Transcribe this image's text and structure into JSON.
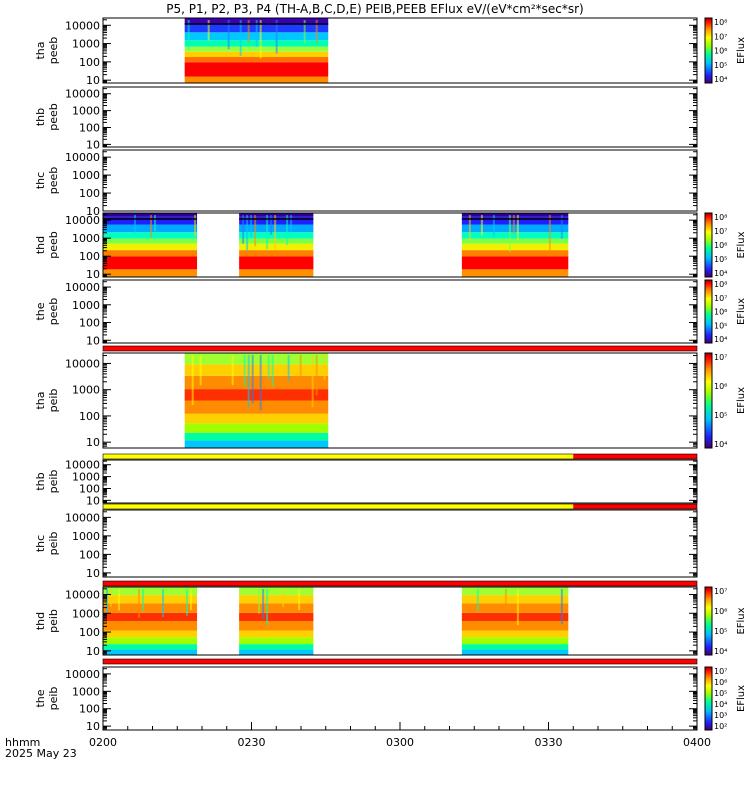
{
  "title": "P5, P1, P2, P3, P4 (TH-A,B,C,D,E) PEIB,PEEB EFlux eV/(eV*cm²*sec*sr)",
  "time_axis": {
    "ticks": [
      "0200",
      "0230",
      "0300",
      "0330",
      "0400"
    ],
    "tick_minutes": [
      0,
      30,
      60,
      90,
      120
    ],
    "label_line1": "hhmm",
    "label_line2": "2025 May 23"
  },
  "colorbar_label": "EFlux",
  "colors": {
    "bar_red": "#ff0000",
    "bar_yellow": "#ffff00",
    "frame": "#000000"
  },
  "chart_data": {
    "type": "heatmap",
    "x_unit": "minutes after 0200 UT",
    "xlim": [
      0,
      120
    ],
    "y_scale": "log",
    "panels": [
      {
        "id": "tha-peeb",
        "label1": "tha",
        "label2": "peeb",
        "yticks": [
          "10",
          "100",
          "1000",
          "10000"
        ],
        "ytick_values": [
          10,
          100,
          1000,
          10000
        ],
        "ylim": [
          7,
          25000
        ],
        "spectrum": "electron-quiet",
        "data_intervals": [
          [
            16.5,
            45.5
          ]
        ],
        "colorbar": [
          "10⁴",
          "10⁵",
          "10⁶",
          "10⁷",
          "10⁸"
        ],
        "colorbar_exp": [
          3,
          4,
          5,
          6,
          7,
          8
        ]
      },
      {
        "id": "thb-peeb",
        "label1": "thb",
        "label2": "peeb",
        "yticks": [
          "10",
          "100",
          "1000",
          "10000"
        ],
        "ytick_values": [
          10,
          100,
          1000,
          10000
        ],
        "ylim": [
          7,
          25000
        ],
        "data_intervals": []
      },
      {
        "id": "thc-peeb",
        "label1": "thc",
        "label2": "peeb",
        "yticks": [
          "10",
          "100",
          "1000",
          "10000"
        ],
        "ytick_values": [
          10,
          100,
          1000,
          10000
        ],
        "ylim": [
          10,
          25000
        ],
        "data_intervals": []
      },
      {
        "id": "thd-peeb",
        "label1": "thd",
        "label2": "peeb",
        "yticks": [
          "10",
          "100",
          "1000",
          "10000"
        ],
        "ytick_values": [
          10,
          100,
          1000,
          10000
        ],
        "ylim": [
          7,
          25000
        ],
        "spectrum": "electron-active",
        "data_intervals": [
          [
            0,
            19
          ],
          [
            27.5,
            42.5
          ],
          [
            72.5,
            94
          ]
        ],
        "colorbar": [
          "10⁴",
          "10⁵",
          "10⁶",
          "10⁷",
          "10⁸"
        ],
        "colorbar_exp": [
          2,
          3,
          4,
          5,
          6,
          7,
          8
        ]
      },
      {
        "id": "the-peeb",
        "label1": "the",
        "label2": "peeb",
        "yticks": [
          "10",
          "100",
          "1000",
          "10000"
        ],
        "ytick_values": [
          10,
          100,
          1000,
          10000
        ],
        "ylim": [
          7,
          25000
        ],
        "data_intervals": [],
        "colorbar": [
          "10⁴",
          "10⁵",
          "10⁶",
          "10⁷",
          "10⁸"
        ],
        "colorbar_exp": [
          3,
          4,
          5,
          6,
          7,
          8
        ]
      },
      {
        "id": "tha-peib",
        "label1": "tha",
        "label2": "peib",
        "yticks": [
          "10",
          "100",
          "1000",
          "10000"
        ],
        "ytick_values": [
          10,
          100,
          1000,
          10000
        ],
        "ylim": [
          6,
          25000
        ],
        "spectrum": "ion",
        "data_intervals": [
          [
            16.5,
            45.5
          ]
        ],
        "colorbar": [
          "10⁴",
          "10⁵",
          "10⁶",
          "10⁷"
        ],
        "colorbar_exp": [
          3,
          4,
          5,
          6,
          7
        ]
      },
      {
        "id": "thb-peib",
        "label1": "thb",
        "label2": "peib",
        "yticks": [
          "10",
          "100",
          "1000",
          "10000"
        ],
        "ytick_values": [
          10,
          100,
          1000,
          10000
        ],
        "ylim": [
          6,
          25000
        ],
        "data_intervals": []
      },
      {
        "id": "thc-peib",
        "label1": "thc",
        "label2": "peib",
        "yticks": [
          "10",
          "100",
          "1000",
          "10000"
        ],
        "ytick_values": [
          10,
          100,
          1000,
          10000
        ],
        "ylim": [
          6,
          25000
        ],
        "data_intervals": []
      },
      {
        "id": "thd-peib",
        "label1": "thd",
        "label2": "peib",
        "yticks": [
          "10",
          "100",
          "1000",
          "10000"
        ],
        "ytick_values": [
          10,
          100,
          1000,
          10000
        ],
        "ylim": [
          6,
          25000
        ],
        "spectrum": "ion",
        "data_intervals": [
          [
            0,
            19
          ],
          [
            27.5,
            42.5
          ],
          [
            72.5,
            94
          ]
        ],
        "colorbar": [
          "10⁴",
          "10⁵",
          "10⁶",
          "10⁷"
        ],
        "colorbar_exp": [
          3,
          4,
          5,
          6,
          7
        ]
      },
      {
        "id": "the-peib",
        "label1": "the",
        "label2": "peib",
        "yticks": [
          "10",
          "100",
          "1000",
          "10000"
        ],
        "ytick_values": [
          10,
          100,
          1000,
          10000
        ],
        "ylim": [
          6,
          25000
        ],
        "data_intervals": [],
        "colorbar": [
          "10²",
          "10³",
          "10⁴",
          "10⁵",
          "10⁶",
          "10⁷"
        ],
        "colorbar_exp": [
          2,
          3,
          4,
          5,
          6,
          7
        ]
      }
    ],
    "mode_bars": [
      {
        "after_panel": 4,
        "segments": [
          {
            "from": 0,
            "to": 120,
            "color": "red"
          }
        ]
      },
      {
        "after_panel": 5,
        "segments": [
          {
            "from": 0,
            "to": 95,
            "color": "yellow"
          },
          {
            "from": 95,
            "to": 120,
            "color": "red"
          }
        ]
      },
      {
        "after_panel": 6,
        "segments": [
          {
            "from": 0,
            "to": 95,
            "color": "yellow"
          },
          {
            "from": 95,
            "to": 120,
            "color": "red"
          }
        ]
      },
      {
        "after_panel": 7,
        "segments": [
          {
            "from": 0,
            "to": 120,
            "color": "red"
          }
        ]
      },
      {
        "after_panel": 8,
        "segments": [
          {
            "from": 0,
            "to": 120,
            "color": "red"
          }
        ]
      }
    ]
  }
}
